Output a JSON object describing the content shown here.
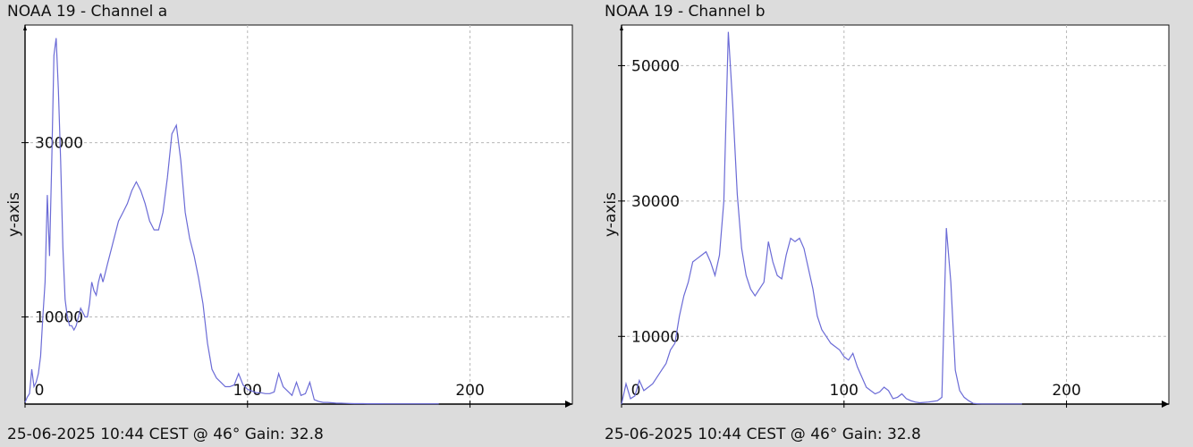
{
  "charts": [
    {
      "title": "NOAA 19 - Channel a",
      "footer": "25-06-2025 10:44 CEST @ 46° Gain: 32.8",
      "chart_data": {
        "type": "line",
        "ylabel": "y-axis",
        "xlabel": "",
        "xlim": [
          0,
          246
        ],
        "ylim": [
          0,
          43500
        ],
        "xticks": [
          0,
          100,
          200
        ],
        "xtick_labels": [
          "0",
          "100",
          "200"
        ],
        "yticks": [
          10000,
          30000
        ],
        "ytick_labels": [
          "10000",
          "30000"
        ],
        "grid": true,
        "line_color": "#6b6bd6",
        "series": [
          {
            "x": [
              0,
              1,
              2,
              3,
              4,
              5,
              6,
              7,
              8,
              9,
              10,
              11,
              12,
              13,
              14,
              15,
              16,
              17,
              18,
              19,
              20,
              21,
              22,
              23,
              24,
              25,
              26,
              27,
              28,
              29,
              30,
              31,
              32,
              33,
              34,
              35,
              36,
              37,
              38,
              39,
              40,
              42,
              44,
              46,
              48,
              50,
              52,
              54,
              56,
              58,
              60,
              62,
              64,
              66,
              68,
              70,
              72,
              74,
              76,
              78,
              80,
              82,
              84,
              86,
              88,
              90,
              92,
              94,
              96,
              98,
              100,
              102,
              104,
              106,
              108,
              110,
              112,
              114,
              116,
              118,
              120,
              122,
              124,
              126,
              128,
              130,
              132,
              134,
              136,
              138,
              140,
              142,
              144,
              146,
              148,
              150,
              152,
              154,
              156,
              158,
              160,
              162,
              164,
              166,
              168,
              170,
              172,
              174,
              176,
              178,
              180,
              182,
              184,
              186
            ],
            "y": [
              200,
              800,
              1200,
              4000,
              2000,
              2500,
              3500,
              5500,
              10000,
              14000,
              24000,
              17000,
              28000,
              40000,
              42000,
              36000,
              28000,
              18000,
              12000,
              10000,
              9000,
              9000,
              8500,
              9000,
              10000,
              11000,
              10500,
              10000,
              10000,
              11500,
              14000,
              13000,
              12500,
              14000,
              15000,
              14000,
              15000,
              16000,
              17000,
              18000,
              19000,
              21000,
              22000,
              23000,
              24500,
              25500,
              24500,
              23000,
              21000,
              20000,
              20000,
              22000,
              26000,
              31000,
              32000,
              28000,
              22000,
              19000,
              17000,
              14500,
              11500,
              7000,
              4000,
              3000,
              2500,
              2000,
              2000,
              2200,
              3500,
              2200,
              1700,
              1500,
              1300,
              1300,
              1200,
              1200,
              1400,
              3500,
              2000,
              1500,
              1000,
              2500,
              1000,
              1200,
              2500,
              500,
              300,
              200,
              200,
              150,
              100,
              100,
              80,
              60,
              50,
              50,
              50,
              40,
              40,
              40,
              40,
              30,
              30,
              30,
              30,
              30,
              30,
              30,
              30,
              30,
              30,
              30,
              30,
              30
            ]
          }
        ]
      }
    },
    {
      "title": "NOAA 19 - Channel b",
      "footer": "25-06-2025 10:44 CEST @ 46° Gain: 32.8",
      "chart_data": {
        "type": "line",
        "ylabel": "y-axis",
        "xlabel": "",
        "xlim": [
          0,
          246
        ],
        "ylim": [
          0,
          56000
        ],
        "xticks": [
          0,
          100,
          200
        ],
        "xtick_labels": [
          "0",
          "100",
          "200"
        ],
        "yticks": [
          10000,
          30000,
          50000
        ],
        "ytick_labels": [
          "10000",
          "30000",
          "50000"
        ],
        "grid": true,
        "line_color": "#6b6bd6",
        "series": [
          {
            "x": [
              0,
              2,
              4,
              6,
              8,
              10,
              12,
              14,
              16,
              18,
              20,
              22,
              24,
              26,
              28,
              30,
              32,
              34,
              36,
              38,
              40,
              42,
              44,
              46,
              48,
              50,
              52,
              54,
              56,
              58,
              60,
              62,
              64,
              66,
              68,
              70,
              72,
              74,
              76,
              78,
              80,
              82,
              84,
              86,
              88,
              90,
              92,
              94,
              96,
              98,
              100,
              102,
              104,
              106,
              108,
              110,
              112,
              114,
              116,
              118,
              120,
              122,
              124,
              126,
              128,
              130,
              132,
              134,
              136,
              138,
              140,
              142,
              144,
              146,
              148,
              150,
              152,
              154,
              156,
              158,
              160,
              162,
              164,
              166,
              168,
              170,
              172,
              174,
              176,
              178,
              180
            ],
            "y": [
              0,
              3000,
              800,
              1200,
              3500,
              2000,
              2500,
              3000,
              4000,
              5000,
              6000,
              8000,
              9000,
              13000,
              16000,
              18000,
              21000,
              21500,
              22000,
              22500,
              21000,
              19000,
              22000,
              30000,
              55000,
              44000,
              31000,
              23000,
              19000,
              17000,
              16000,
              17000,
              18000,
              24000,
              21000,
              19000,
              18500,
              22000,
              24500,
              24000,
              24500,
              23000,
              20000,
              17000,
              13000,
              11000,
              10000,
              9000,
              8500,
              8000,
              7000,
              6500,
              7500,
              5500,
              4000,
              2500,
              2000,
              1500,
              1800,
              2500,
              2000,
              800,
              1000,
              1500,
              800,
              500,
              300,
              200,
              250,
              300,
              400,
              500,
              1000,
              26000,
              18000,
              5000,
              2000,
              1000,
              500,
              100,
              50,
              30,
              30,
              30,
              30,
              30,
              30,
              30,
              30,
              30,
              30
            ]
          }
        ]
      }
    }
  ]
}
